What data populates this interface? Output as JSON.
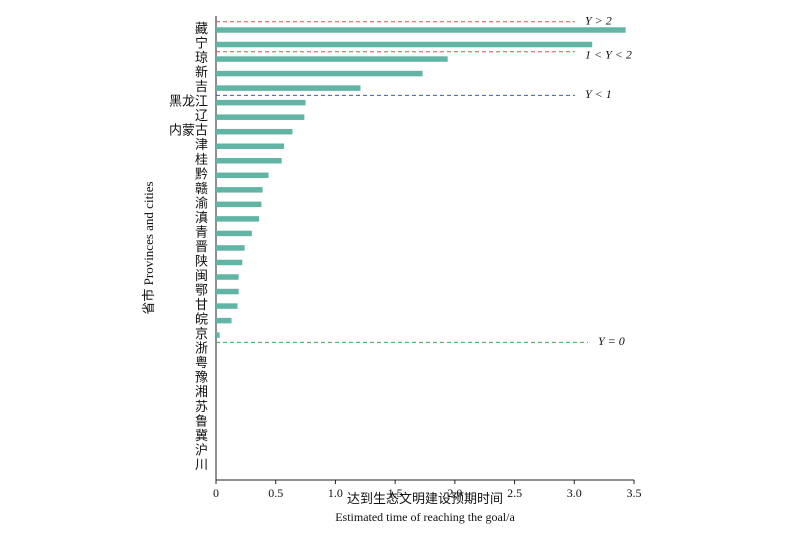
{
  "chart_data": {
    "type": "bar",
    "orientation": "horizontal",
    "x_label": "达到生态文明建设预期时间",
    "x_label_en": "Estimated time of reaching the goal/a",
    "y_label": "省市 Provinces and cities",
    "categories": [
      "藏",
      "宁",
      "琼",
      "新",
      "吉",
      "黑龙江",
      "辽",
      "内蒙古",
      "津",
      "桂",
      "黔",
      "赣",
      "渝",
      "滇",
      "青",
      "晋",
      "陕",
      "闽",
      "鄂",
      "甘",
      "皖",
      "京",
      "浙",
      "粤",
      "豫",
      "湘",
      "苏",
      "鲁",
      "冀",
      "沪",
      "川"
    ],
    "values": [
      3.43,
      3.15,
      1.94,
      1.73,
      1.21,
      0.75,
      0.74,
      0.64,
      0.57,
      0.55,
      0.44,
      0.39,
      0.38,
      0.36,
      0.3,
      0.24,
      0.22,
      0.19,
      0.19,
      0.18,
      0.13,
      0.03,
      0,
      0,
      0,
      0,
      0,
      0,
      0,
      0,
      0
    ],
    "color": "#62b5a5",
    "xlim": [
      0,
      3.5
    ],
    "xticks": [
      0,
      0.5,
      {
        "value": 1,
        "label": "1.0"
      },
      1.5,
      {
        "value": 2,
        "label": "2.0"
      },
      2.5,
      {
        "value": 3,
        "label": "3.0"
      },
      3.5
    ],
    "annotations": [
      {
        "label": "Y > 2",
        "color": "#d9534f"
      },
      {
        "label": "1 < Y < 2",
        "color": "#d9534f"
      },
      {
        "label": "Y < 1",
        "color": "#3b5fb5"
      },
      {
        "label": "Y = 0",
        "color": "#3aaa4a"
      }
    ]
  }
}
